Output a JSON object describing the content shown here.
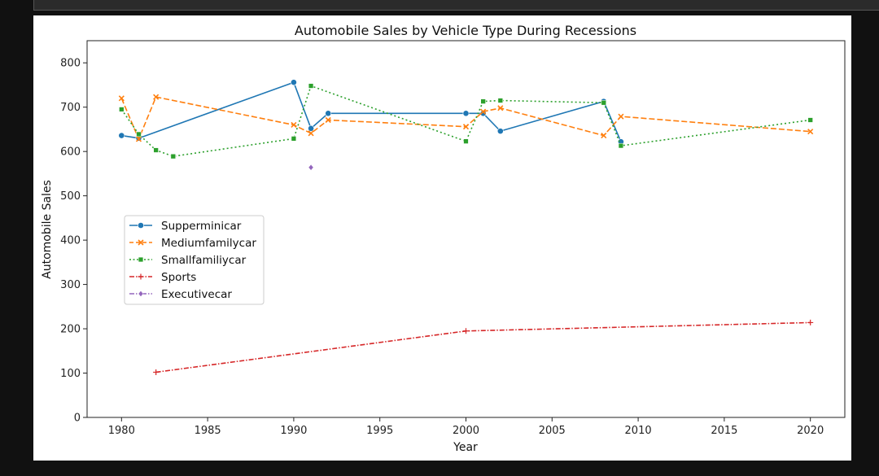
{
  "chart_data": {
    "type": "line",
    "title": "Automobile Sales by Vehicle Type During Recessions",
    "xlabel": "Year",
    "ylabel": "Automobile Sales",
    "xlim": [
      1978,
      2022
    ],
    "ylim": [
      0,
      850
    ],
    "xticks": [
      1980,
      1985,
      1990,
      1995,
      2000,
      2005,
      2010,
      2015,
      2020
    ],
    "yticks": [
      0,
      100,
      200,
      300,
      400,
      500,
      600,
      700,
      800
    ],
    "grid": false,
    "legend_position": "center-left",
    "series": [
      {
        "name": "Supperminicar",
        "color": "#1f77b4",
        "dash": "solid",
        "marker": "circle",
        "x": [
          1980,
          1981,
          1990,
          1991,
          1992,
          2000,
          2001,
          2002,
          2008,
          2009
        ],
        "y": [
          636,
          630,
          756,
          652,
          686,
          686,
          686,
          646,
          713,
          622
        ]
      },
      {
        "name": "Mediumfamilycar",
        "color": "#ff7f0e",
        "dash": "dashed",
        "marker": "x",
        "x": [
          1980,
          1981,
          1982,
          1990,
          1991,
          1992,
          2000,
          2001,
          2002,
          2008,
          2009,
          2020
        ],
        "y": [
          720,
          628,
          723,
          660,
          641,
          671,
          656,
          690,
          698,
          636,
          679,
          645
        ]
      },
      {
        "name": "Smallfamiliycar",
        "color": "#2ca02c",
        "dash": "dotted",
        "marker": "square",
        "x": [
          1980,
          1981,
          1982,
          1983,
          1990,
          1991,
          2000,
          2001,
          2002,
          2008,
          2009,
          2020
        ],
        "y": [
          695,
          639,
          603,
          589,
          629,
          748,
          623,
          713,
          715,
          710,
          613,
          671
        ]
      },
      {
        "name": "Sports",
        "color": "#d62728",
        "dash": "dashdot",
        "marker": "plus",
        "x": [
          1982,
          2000,
          2020
        ],
        "y": [
          102,
          195,
          214
        ]
      },
      {
        "name": "Executivecar",
        "color": "#9467bd",
        "dash": "dashdotdot",
        "marker": "diamond",
        "x": [
          1991
        ],
        "y": [
          564
        ]
      }
    ]
  }
}
